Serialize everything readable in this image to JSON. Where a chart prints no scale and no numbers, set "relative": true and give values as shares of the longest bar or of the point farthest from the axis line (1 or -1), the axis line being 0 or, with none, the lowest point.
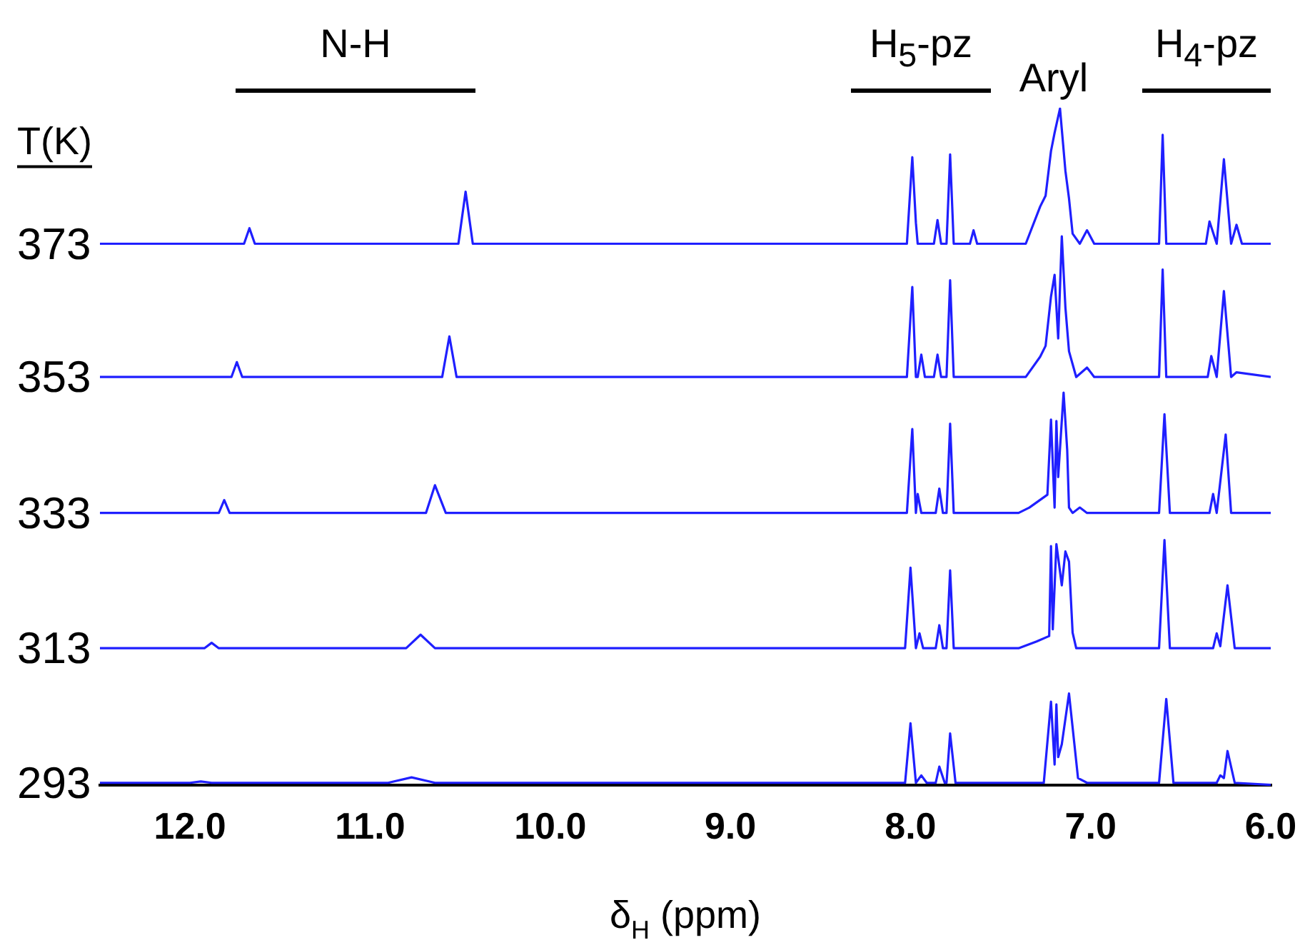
{
  "chart_data": {
    "type": "line",
    "relative": true,
    "xlabel": "δ$_{H}$ (ppm)",
    "legend_title": "T(K)",
    "xlim": [
      12.5,
      6.0
    ],
    "xticks": [
      {
        "value": 12,
        "label": "12.0"
      },
      {
        "value": 11,
        "label": "11.0"
      },
      {
        "value": 10,
        "label": "10.0"
      },
      {
        "value": 9,
        "label": "9.0"
      },
      {
        "value": 8,
        "label": "8.0"
      },
      {
        "value": 7,
        "label": "7.0"
      },
      {
        "value": 6,
        "label": "6.0"
      }
    ],
    "annotations": [
      "N-H",
      "H$_{5}$-pz",
      "Aryl",
      "H$_{4}$-pz"
    ],
    "series": [
      {
        "name": "373",
        "color": "#1f1fff",
        "x": [
          12.5,
          11.7,
          11.67,
          11.64,
          10.51,
          10.47,
          10.43,
          8.02,
          7.99,
          7.97,
          7.96,
          7.87,
          7.85,
          7.83,
          7.8,
          7.78,
          7.76,
          7.67,
          7.65,
          7.63,
          7.36,
          7.28,
          7.25,
          7.22,
          7.2,
          7.17,
          7.14,
          7.12,
          7.1,
          7.06,
          7.02,
          6.98,
          6.62,
          6.6,
          6.58,
          6.36,
          6.34,
          6.3,
          6.26,
          6.22,
          6.19,
          6.16,
          6.0
        ],
        "values": [
          0.8,
          0.8,
          0.823,
          0.8,
          0.8,
          0.877,
          0.8,
          0.8,
          0.928,
          0.831,
          0.8,
          0.8,
          0.835,
          0.8,
          0.8,
          0.932,
          0.8,
          0.8,
          0.82,
          0.8,
          0.8,
          0.855,
          0.871,
          0.937,
          0.964,
          1.0,
          0.908,
          0.867,
          0.815,
          0.8,
          0.82,
          0.8,
          0.8,
          0.961,
          0.8,
          0.8,
          0.833,
          0.8,
          0.925,
          0.8,
          0.828,
          0.8,
          0.8
        ]
      },
      {
        "name": "353",
        "color": "#1f1fff",
        "x": [
          12.5,
          11.77,
          11.74,
          11.71,
          10.6,
          10.56,
          10.52,
          8.02,
          7.99,
          7.97,
          7.96,
          7.94,
          7.92,
          7.87,
          7.85,
          7.83,
          7.8,
          7.78,
          7.76,
          7.36,
          7.28,
          7.25,
          7.22,
          7.2,
          7.18,
          7.16,
          7.14,
          7.12,
          7.08,
          7.02,
          6.98,
          6.62,
          6.6,
          6.58,
          6.35,
          6.33,
          6.3,
          6.26,
          6.22,
          6.19,
          6.0
        ],
        "values": [
          0.603,
          0.603,
          0.625,
          0.603,
          0.603,
          0.663,
          0.603,
          0.603,
          0.736,
          0.603,
          0.603,
          0.636,
          0.603,
          0.603,
          0.636,
          0.603,
          0.603,
          0.746,
          0.603,
          0.603,
          0.633,
          0.649,
          0.722,
          0.754,
          0.66,
          0.811,
          0.706,
          0.641,
          0.603,
          0.617,
          0.603,
          0.603,
          0.762,
          0.603,
          0.603,
          0.634,
          0.603,
          0.73,
          0.603,
          0.61,
          0.603
        ]
      },
      {
        "name": "333",
        "color": "#1f1fff",
        "x": [
          12.5,
          11.84,
          11.81,
          11.78,
          10.69,
          10.64,
          10.58,
          8.02,
          7.99,
          7.97,
          7.96,
          7.94,
          7.86,
          7.84,
          7.82,
          7.8,
          7.78,
          7.76,
          7.4,
          7.34,
          7.24,
          7.22,
          7.2,
          7.19,
          7.18,
          7.15,
          7.13,
          7.12,
          7.1,
          7.06,
          7.02,
          6.62,
          6.59,
          6.56,
          6.34,
          6.32,
          6.3,
          6.25,
          6.22,
          6.0
        ],
        "values": [
          0.402,
          0.402,
          0.421,
          0.402,
          0.402,
          0.443,
          0.402,
          0.402,
          0.526,
          0.402,
          0.43,
          0.402,
          0.402,
          0.438,
          0.402,
          0.402,
          0.534,
          0.402,
          0.402,
          0.41,
          0.429,
          0.54,
          0.41,
          0.538,
          0.455,
          0.58,
          0.495,
          0.41,
          0.402,
          0.41,
          0.402,
          0.402,
          0.548,
          0.402,
          0.402,
          0.43,
          0.402,
          0.518,
          0.402,
          0.402
        ]
      },
      {
        "name": "313",
        "color": "#1f1fff",
        "x": [
          12.5,
          11.92,
          11.88,
          11.84,
          10.8,
          10.72,
          10.64,
          8.03,
          8.0,
          7.97,
          7.95,
          7.93,
          7.86,
          7.84,
          7.82,
          7.8,
          7.78,
          7.76,
          7.4,
          7.3,
          7.23,
          7.22,
          7.21,
          7.19,
          7.16,
          7.14,
          7.12,
          7.1,
          7.08,
          6.62,
          6.59,
          6.56,
          6.32,
          6.3,
          6.28,
          6.24,
          6.2,
          6.0
        ],
        "values": [
          0.202,
          0.202,
          0.21,
          0.202,
          0.202,
          0.222,
          0.202,
          0.202,
          0.321,
          0.202,
          0.224,
          0.202,
          0.202,
          0.236,
          0.202,
          0.202,
          0.317,
          0.202,
          0.202,
          0.212,
          0.22,
          0.353,
          0.23,
          0.356,
          0.295,
          0.345,
          0.33,
          0.225,
          0.202,
          0.202,
          0.362,
          0.202,
          0.202,
          0.224,
          0.205,
          0.295,
          0.202,
          0.202
        ]
      },
      {
        "name": "293",
        "color": "#1f1fff",
        "x": [
          12.5,
          12.0,
          11.94,
          11.88,
          10.9,
          10.77,
          10.64,
          8.03,
          8.0,
          7.97,
          7.94,
          7.91,
          7.86,
          7.84,
          7.81,
          7.8,
          7.78,
          7.75,
          7.26,
          7.22,
          7.2,
          7.19,
          7.18,
          7.16,
          7.12,
          7.07,
          7.02,
          6.62,
          6.58,
          6.54,
          6.3,
          6.28,
          6.26,
          6.24,
          6.2,
          6.0
        ],
        "values": [
          0.003,
          0.003,
          0.005,
          0.003,
          0.003,
          0.011,
          0.003,
          0.003,
          0.091,
          0.003,
          0.014,
          0.003,
          0.003,
          0.027,
          0.003,
          0.003,
          0.076,
          0.003,
          0.003,
          0.123,
          0.03,
          0.119,
          0.041,
          0.06,
          0.135,
          0.01,
          0.003,
          0.003,
          0.127,
          0.003,
          0.003,
          0.014,
          0.01,
          0.05,
          0.003,
          0
        ]
      }
    ]
  }
}
